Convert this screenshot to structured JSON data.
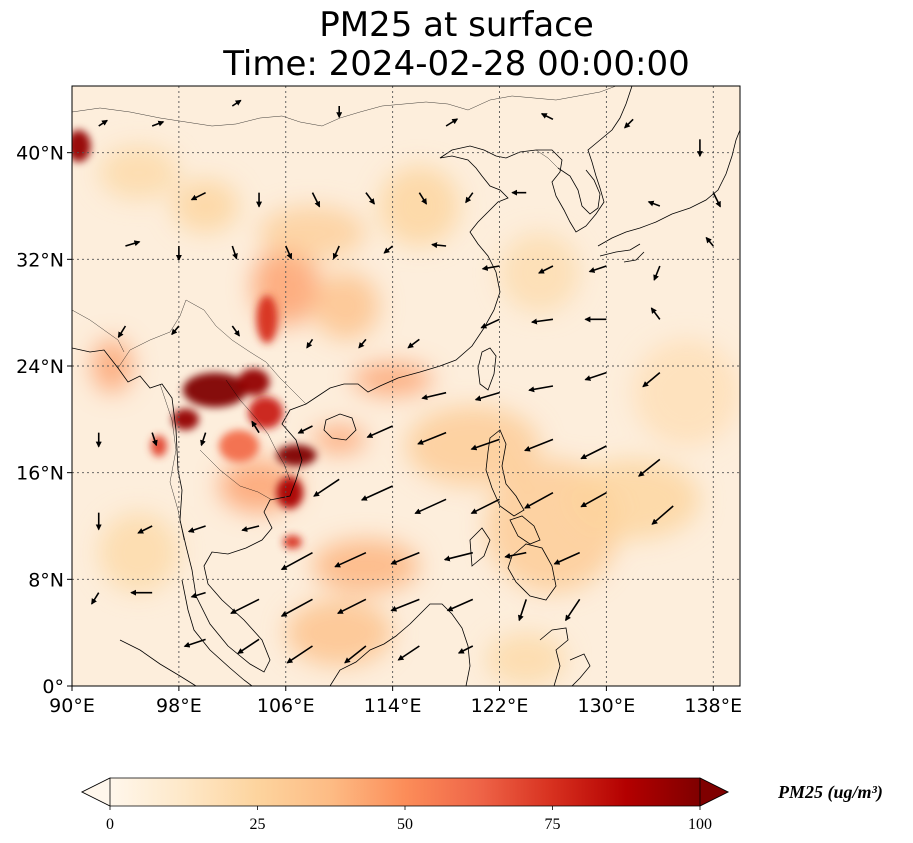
{
  "title": {
    "line1": "PM25 at surface",
    "line2": "Time: 2024-02-28 00:00:00"
  },
  "map": {
    "lon_range": [
      90,
      140
    ],
    "lat_range": [
      0,
      45
    ],
    "lon_ticks": [
      {
        "value": 90,
        "label": "90°E"
      },
      {
        "value": 98,
        "label": "98°E"
      },
      {
        "value": 106,
        "label": "106°E"
      },
      {
        "value": 114,
        "label": "114°E"
      },
      {
        "value": 122,
        "label": "122°E"
      },
      {
        "value": 130,
        "label": "130°E"
      },
      {
        "value": 138,
        "label": "138°E"
      }
    ],
    "lat_ticks": [
      {
        "value": 0,
        "label": "0°"
      },
      {
        "value": 8,
        "label": "8°N"
      },
      {
        "value": 16,
        "label": "16°N"
      },
      {
        "value": 24,
        "label": "24°N"
      },
      {
        "value": 32,
        "label": "32°N"
      },
      {
        "value": 40,
        "label": "40°N"
      }
    ],
    "gridlines": true,
    "colormap": "OrRd",
    "background_color": "#fdeedc",
    "hotspots": [
      {
        "lon": 100.7,
        "lat": 22.2,
        "value": 100,
        "rx": 2.4,
        "ry": 1.3
      },
      {
        "lon": 103.6,
        "lat": 22.8,
        "value": 95,
        "rx": 1.2,
        "ry": 1.0
      },
      {
        "lon": 106.8,
        "lat": 17.3,
        "value": 100,
        "rx": 1.5,
        "ry": 0.8
      },
      {
        "lon": 106.3,
        "lat": 14.5,
        "value": 90,
        "rx": 1.0,
        "ry": 1.2
      },
      {
        "lon": 98.5,
        "lat": 20.0,
        "value": 95,
        "rx": 1.0,
        "ry": 0.8
      },
      {
        "lon": 104.5,
        "lat": 20.5,
        "value": 80,
        "rx": 1.3,
        "ry": 1.2
      },
      {
        "lon": 90.5,
        "lat": 40.5,
        "value": 95,
        "rx": 0.9,
        "ry": 1.2
      },
      {
        "lon": 96.5,
        "lat": 18.0,
        "value": 70,
        "rx": 0.6,
        "ry": 0.8
      },
      {
        "lon": 106.5,
        "lat": 10.8,
        "value": 75,
        "rx": 0.7,
        "ry": 0.5
      },
      {
        "lon": 104.6,
        "lat": 27.5,
        "value": 75,
        "rx": 0.8,
        "ry": 1.8
      },
      {
        "lon": 102.5,
        "lat": 18.0,
        "value": 60,
        "rx": 1.5,
        "ry": 1.2
      },
      {
        "lon": 106.0,
        "lat": 30.0,
        "value": 45,
        "rx": 2.5,
        "ry": 3.0
      },
      {
        "lon": 110.5,
        "lat": 28.5,
        "value": 35,
        "rx": 2.5,
        "ry": 2.5
      },
      {
        "lon": 114.0,
        "lat": 23.0,
        "value": 45,
        "rx": 3.0,
        "ry": 1.2
      },
      {
        "lon": 110.0,
        "lat": 18.5,
        "value": 45,
        "rx": 2.0,
        "ry": 1.0
      },
      {
        "lon": 104.0,
        "lat": 15.0,
        "value": 45,
        "rx": 3.0,
        "ry": 2.0
      },
      {
        "lon": 112.0,
        "lat": 9.0,
        "value": 40,
        "rx": 4.0,
        "ry": 2.0
      },
      {
        "lon": 110.0,
        "lat": 4.0,
        "value": 35,
        "rx": 4.0,
        "ry": 2.5
      },
      {
        "lon": 126.0,
        "lat": 12.0,
        "value": 30,
        "rx": 5.0,
        "ry": 5.0
      },
      {
        "lon": 132.0,
        "lat": 14.0,
        "value": 25,
        "rx": 5.0,
        "ry": 3.0
      },
      {
        "lon": 120.0,
        "lat": 18.0,
        "value": 30,
        "rx": 5.0,
        "ry": 3.0
      },
      {
        "lon": 125.0,
        "lat": 31.0,
        "value": 20,
        "rx": 3.0,
        "ry": 3.0
      },
      {
        "lon": 95.0,
        "lat": 38.5,
        "value": 22,
        "rx": 3.0,
        "ry": 2.0
      },
      {
        "lon": 100.0,
        "lat": 36.0,
        "value": 25,
        "rx": 2.5,
        "ry": 2.0
      },
      {
        "lon": 108.0,
        "lat": 34.0,
        "value": 28,
        "rx": 4.0,
        "ry": 2.0
      },
      {
        "lon": 116.0,
        "lat": 36.0,
        "value": 25,
        "rx": 3.0,
        "ry": 3.0
      },
      {
        "lon": 93.0,
        "lat": 24.0,
        "value": 45,
        "rx": 1.5,
        "ry": 2.0
      },
      {
        "lon": 95.0,
        "lat": 10.0,
        "value": 22,
        "rx": 3.0,
        "ry": 3.0
      },
      {
        "lon": 124.0,
        "lat": 2.0,
        "value": 22,
        "rx": 3.0,
        "ry": 2.0
      },
      {
        "lon": 136.0,
        "lat": 22.0,
        "value": 18,
        "rx": 4.0,
        "ry": 4.0
      }
    ],
    "wind_vectors": [
      {
        "lon": 100.0,
        "lat": 37.0,
        "u": -1.0,
        "v": -0.5
      },
      {
        "lon": 104.0,
        "lat": 37.0,
        "u": 0.0,
        "v": -1.0
      },
      {
        "lon": 108.0,
        "lat": 37.0,
        "u": 0.5,
        "v": -1.0
      },
      {
        "lon": 112.0,
        "lat": 37.0,
        "u": 0.6,
        "v": -0.8
      },
      {
        "lon": 116.0,
        "lat": 37.0,
        "u": 0.5,
        "v": -0.8
      },
      {
        "lon": 120.0,
        "lat": 37.0,
        "u": -0.5,
        "v": -0.7
      },
      {
        "lon": 124.0,
        "lat": 37.0,
        "u": -1.0,
        "v": 0.0
      },
      {
        "lon": 94.0,
        "lat": 33.0,
        "u": 1.0,
        "v": 0.3
      },
      {
        "lon": 98.0,
        "lat": 33.0,
        "u": 0.0,
        "v": -1.0
      },
      {
        "lon": 102.0,
        "lat": 33.0,
        "u": 0.3,
        "v": -0.9
      },
      {
        "lon": 106.0,
        "lat": 33.0,
        "u": 0.4,
        "v": -0.9
      },
      {
        "lon": 110.0,
        "lat": 33.0,
        "u": -0.4,
        "v": -0.9
      },
      {
        "lon": 114.0,
        "lat": 33.0,
        "u": -0.6,
        "v": -0.5
      },
      {
        "lon": 118.0,
        "lat": 33.0,
        "u": -1.0,
        "v": 0.1
      },
      {
        "lon": 122.0,
        "lat": 31.5,
        "u": -1.2,
        "v": -0.2
      },
      {
        "lon": 126.0,
        "lat": 31.5,
        "u": -1.0,
        "v": -0.5
      },
      {
        "lon": 130.0,
        "lat": 31.5,
        "u": -1.2,
        "v": -0.4
      },
      {
        "lon": 134.0,
        "lat": 31.5,
        "u": -0.4,
        "v": -1.0
      },
      {
        "lon": 138.0,
        "lat": 33.0,
        "u": -0.5,
        "v": 0.6
      },
      {
        "lon": 122.0,
        "lat": 27.5,
        "u": -1.3,
        "v": -0.6
      },
      {
        "lon": 126.0,
        "lat": 27.5,
        "u": -1.5,
        "v": -0.2
      },
      {
        "lon": 130.0,
        "lat": 27.5,
        "u": -1.5,
        "v": 0.0
      },
      {
        "lon": 134.0,
        "lat": 27.5,
        "u": -0.6,
        "v": 0.8
      },
      {
        "lon": 118.0,
        "lat": 22.0,
        "u": -1.7,
        "v": -0.4
      },
      {
        "lon": 122.0,
        "lat": 22.0,
        "u": -1.7,
        "v": -0.5
      },
      {
        "lon": 126.0,
        "lat": 22.5,
        "u": -1.7,
        "v": -0.3
      },
      {
        "lon": 130.0,
        "lat": 23.5,
        "u": -1.5,
        "v": -0.5
      },
      {
        "lon": 134.0,
        "lat": 23.5,
        "u": -1.2,
        "v": -1.0
      },
      {
        "lon": 114.0,
        "lat": 19.5,
        "u": -1.8,
        "v": -0.8
      },
      {
        "lon": 118.0,
        "lat": 19.0,
        "u": -2.0,
        "v": -0.8
      },
      {
        "lon": 122.0,
        "lat": 18.5,
        "u": -2.0,
        "v": -0.7
      },
      {
        "lon": 126.0,
        "lat": 18.5,
        "u": -2.0,
        "v": -0.8
      },
      {
        "lon": 130.0,
        "lat": 18.0,
        "u": -1.8,
        "v": -0.9
      },
      {
        "lon": 134.0,
        "lat": 17.0,
        "u": -1.5,
        "v": -1.2
      },
      {
        "lon": 110.0,
        "lat": 15.5,
        "u": -1.8,
        "v": -1.2
      },
      {
        "lon": 114.0,
        "lat": 15.0,
        "u": -2.2,
        "v": -1.0
      },
      {
        "lon": 118.0,
        "lat": 14.0,
        "u": -2.2,
        "v": -1.0
      },
      {
        "lon": 122.0,
        "lat": 14.0,
        "u": -2.0,
        "v": -1.0
      },
      {
        "lon": 126.0,
        "lat": 14.5,
        "u": -2.0,
        "v": -1.1
      },
      {
        "lon": 130.0,
        "lat": 14.5,
        "u": -1.8,
        "v": -1.0
      },
      {
        "lon": 135.0,
        "lat": 13.5,
        "u": -1.5,
        "v": -1.3
      },
      {
        "lon": 108.0,
        "lat": 10.0,
        "u": -2.2,
        "v": -1.2
      },
      {
        "lon": 112.0,
        "lat": 10.0,
        "u": -2.2,
        "v": -1.0
      },
      {
        "lon": 116.0,
        "lat": 10.0,
        "u": -2.0,
        "v": -0.8
      },
      {
        "lon": 120.0,
        "lat": 10.0,
        "u": -2.0,
        "v": -0.5
      },
      {
        "lon": 124.0,
        "lat": 10.0,
        "u": -1.5,
        "v": -0.3
      },
      {
        "lon": 128.0,
        "lat": 10.0,
        "u": -1.8,
        "v": -0.8
      },
      {
        "lon": 104.0,
        "lat": 6.5,
        "u": -2.0,
        "v": -1.0
      },
      {
        "lon": 108.0,
        "lat": 6.5,
        "u": -2.2,
        "v": -1.2
      },
      {
        "lon": 112.0,
        "lat": 6.5,
        "u": -2.0,
        "v": -1.0
      },
      {
        "lon": 116.0,
        "lat": 6.5,
        "u": -2.0,
        "v": -0.8
      },
      {
        "lon": 120.0,
        "lat": 6.5,
        "u": -1.8,
        "v": -0.8
      },
      {
        "lon": 124.0,
        "lat": 6.5,
        "u": -0.5,
        "v": -1.5
      },
      {
        "lon": 128.0,
        "lat": 6.5,
        "u": -1.0,
        "v": -1.5
      },
      {
        "lon": 100.0,
        "lat": 3.5,
        "u": -1.5,
        "v": -0.5
      },
      {
        "lon": 104.0,
        "lat": 3.5,
        "u": -1.5,
        "v": -1.0
      },
      {
        "lon": 108.0,
        "lat": 3.0,
        "u": -1.8,
        "v": -1.2
      },
      {
        "lon": 112.0,
        "lat": 3.0,
        "u": -1.5,
        "v": -1.2
      },
      {
        "lon": 116.0,
        "lat": 3.0,
        "u": -1.5,
        "v": -1.0
      },
      {
        "lon": 120.0,
        "lat": 3.0,
        "u": -1.0,
        "v": -0.5
      },
      {
        "lon": 92.0,
        "lat": 19.0,
        "u": 0.0,
        "v": -1.0
      },
      {
        "lon": 96.0,
        "lat": 19.0,
        "u": 0.3,
        "v": -0.9
      },
      {
        "lon": 100.0,
        "lat": 19.0,
        "u": -0.3,
        "v": -0.9
      },
      {
        "lon": 104.0,
        "lat": 19.0,
        "u": -0.5,
        "v": 0.8
      },
      {
        "lon": 108.0,
        "lat": 19.5,
        "u": -1.0,
        "v": -0.5
      },
      {
        "lon": 92.0,
        "lat": 13.0,
        "u": 0.0,
        "v": -1.2
      },
      {
        "lon": 96.0,
        "lat": 12.0,
        "u": -1.0,
        "v": -0.5
      },
      {
        "lon": 100.0,
        "lat": 12.0,
        "u": -1.2,
        "v": -0.4
      },
      {
        "lon": 104.0,
        "lat": 12.0,
        "u": -1.2,
        "v": -0.3
      },
      {
        "lon": 92.0,
        "lat": 7.0,
        "u": -0.5,
        "v": -0.8
      },
      {
        "lon": 96.0,
        "lat": 7.0,
        "u": -1.5,
        "v": 0.0
      },
      {
        "lon": 100.0,
        "lat": 7.0,
        "u": -1.0,
        "v": -0.3
      },
      {
        "lon": 94.0,
        "lat": 27.0,
        "u": -0.5,
        "v": -0.8
      },
      {
        "lon": 98.0,
        "lat": 27.0,
        "u": -0.5,
        "v": -0.6
      },
      {
        "lon": 102.0,
        "lat": 27.0,
        "u": 0.5,
        "v": -0.7
      },
      {
        "lon": 108.0,
        "lat": 26.0,
        "u": -0.4,
        "v": -0.6
      },
      {
        "lon": 112.0,
        "lat": 26.0,
        "u": -0.5,
        "v": -0.6
      },
      {
        "lon": 116.0,
        "lat": 26.0,
        "u": -0.8,
        "v": -0.6
      },
      {
        "lon": 92.0,
        "lat": 42.0,
        "u": 0.6,
        "v": 0.4
      },
      {
        "lon": 96.0,
        "lat": 42.0,
        "u": 0.8,
        "v": 0.3
      },
      {
        "lon": 102.0,
        "lat": 43.5,
        "u": 0.6,
        "v": 0.4
      },
      {
        "lon": 110.0,
        "lat": 43.5,
        "u": 0.0,
        "v": -0.8
      },
      {
        "lon": 118.0,
        "lat": 42.0,
        "u": 0.8,
        "v": 0.5
      },
      {
        "lon": 126.0,
        "lat": 42.5,
        "u": -0.8,
        "v": 0.4
      },
      {
        "lon": 132.0,
        "lat": 42.5,
        "u": -0.6,
        "v": -0.6
      },
      {
        "lon": 137.0,
        "lat": 41.0,
        "u": 0.0,
        "v": -1.2
      },
      {
        "lon": 134.0,
        "lat": 36.0,
        "u": -0.8,
        "v": 0.3
      },
      {
        "lon": 138.0,
        "lat": 37.0,
        "u": 0.5,
        "v": -1.0
      }
    ]
  },
  "colorbar": {
    "min": 0,
    "max": 100,
    "ticks": [
      {
        "value": 0,
        "label": "0"
      },
      {
        "value": 25,
        "label": "25"
      },
      {
        "value": 50,
        "label": "50"
      },
      {
        "value": 75,
        "label": "75"
      },
      {
        "value": 100,
        "label": "100"
      }
    ],
    "label": "PM25 (ug/m³)",
    "colors": [
      "#fff7ec",
      "#fee8c8",
      "#fdd49e",
      "#fdbb84",
      "#fc8d59",
      "#ef6548",
      "#d7301f",
      "#b30000",
      "#7f0000"
    ]
  }
}
